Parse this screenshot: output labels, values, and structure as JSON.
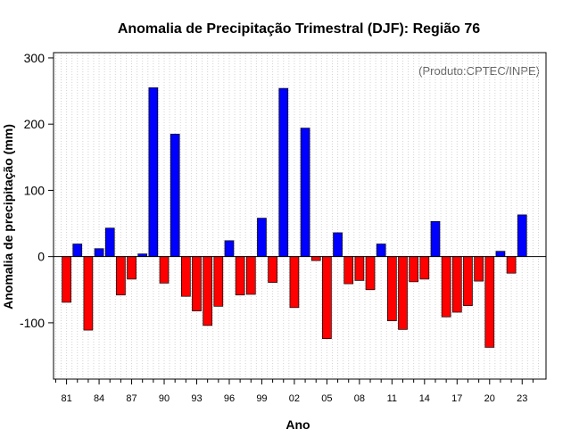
{
  "chart_data": {
    "type": "bar",
    "title": "Anomalia de Precipitação Trimestral (DJF): Região 76",
    "xlabel": "Ano",
    "ylabel": "Anomalia de precipitação (mm)",
    "credit": "(Produto:CPTEC/INPE)",
    "ylim": [
      -185,
      308
    ],
    "yticks": [
      -100,
      0,
      100,
      200,
      300
    ],
    "xlim": [
      1979.8,
      2025.2
    ],
    "xtick_years": [
      1981,
      1984,
      1987,
      1990,
      1993,
      1996,
      1999,
      2002,
      2005,
      2008,
      2011,
      2014,
      2017,
      2020,
      2023
    ],
    "xtick_labels": [
      "81",
      "84",
      "87",
      "90",
      "93",
      "96",
      "99",
      "02",
      "05",
      "08",
      "11",
      "14",
      "17",
      "20",
      "23"
    ],
    "positive_color": "#0000ff",
    "negative_color": "#ff0000",
    "grid": "vertical dotted",
    "categories": [
      "1981",
      "1982",
      "1983",
      "1984",
      "1985",
      "1986",
      "1987",
      "1988",
      "1989",
      "1990",
      "1991",
      "1992",
      "1993",
      "1994",
      "1995",
      "1996",
      "1997",
      "1998",
      "1999",
      "2000",
      "2001",
      "2002",
      "2003",
      "2004",
      "2005",
      "2006",
      "2007",
      "2008",
      "2009",
      "2010",
      "2011",
      "2012",
      "2013",
      "2014",
      "2015",
      "2016",
      "2017",
      "2018",
      "2019",
      "2020",
      "2021",
      "2022",
      "2023"
    ],
    "values": [
      -69,
      19,
      -111,
      12,
      43,
      -58,
      -34,
      4,
      255,
      -40,
      185,
      -60,
      -82,
      -104,
      -75,
      24,
      -58,
      -57,
      58,
      -39,
      254,
      -77,
      194,
      -6,
      -124,
      36,
      -41,
      -36,
      -50,
      19,
      -97,
      -110,
      -38,
      -34,
      53,
      -91,
      -84,
      -74,
      -37,
      -137,
      8,
      -25,
      63
    ]
  }
}
